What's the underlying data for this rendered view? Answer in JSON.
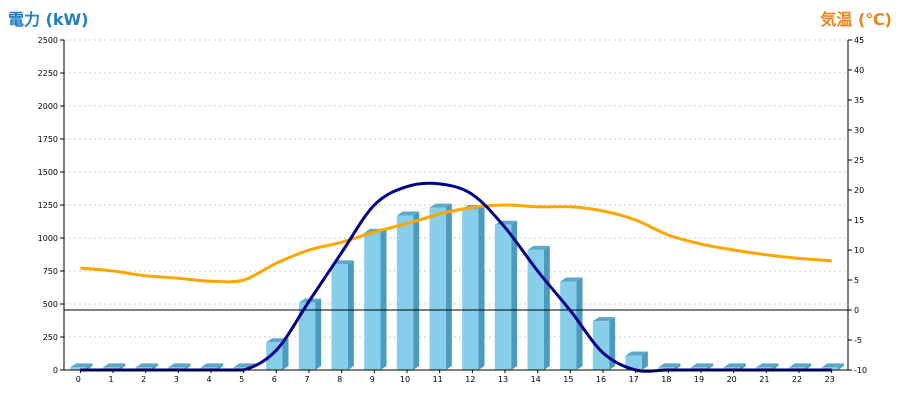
{
  "chart_data": {
    "type": "bar",
    "categories": [
      "0",
      "1",
      "2",
      "3",
      "4",
      "5",
      "6",
      "7",
      "8",
      "9",
      "10",
      "11",
      "12",
      "13",
      "14",
      "15",
      "16",
      "17",
      "18",
      "19",
      "20",
      "21",
      "22",
      "23"
    ],
    "left_axis": {
      "title": "電力 (kW)",
      "range": [
        0,
        2500
      ],
      "ticks": [
        "0",
        "250",
        "500",
        "750",
        "1000",
        "1250",
        "1500",
        "1750",
        "2000",
        "2250",
        "2500"
      ]
    },
    "right_axis": {
      "title": "気温 (℃)",
      "range": [
        -10,
        45
      ],
      "ticks": [
        "-10",
        "-5",
        "0",
        "5",
        "10",
        "15",
        "20",
        "25",
        "30",
        "35",
        "40",
        "45"
      ]
    },
    "series": [
      {
        "kind": "bar",
        "axis": "left",
        "values": [
          20,
          20,
          20,
          20,
          20,
          20,
          210,
          510,
          800,
          1040,
          1170,
          1230,
          1220,
          1100,
          910,
          670,
          370,
          110,
          20,
          20,
          20,
          20,
          20,
          20
        ]
      },
      {
        "kind": "line",
        "axis": "left",
        "values": [
          0,
          0,
          0,
          0,
          0,
          0,
          150,
          520,
          890,
          1250,
          1390,
          1410,
          1330,
          1080,
          750,
          450,
          130,
          0,
          0,
          0,
          0,
          0,
          0,
          0
        ]
      },
      {
        "kind": "line",
        "axis": "right",
        "values": [
          7,
          6.5,
          5.7,
          5.3,
          4.8,
          5,
          7.8,
          10,
          11.3,
          13,
          14.4,
          16,
          17.1,
          17.5,
          17.2,
          17.2,
          16.5,
          15,
          12.5,
          11,
          10,
          9.2,
          8.6,
          8.2
        ]
      }
    ],
    "colors": {
      "bar_face": "#87CEEB",
      "bar_side": "#4A9BBF",
      "bar_top": "#5BA8C8",
      "power_line": "#00008B",
      "temp_line": "#FFA500",
      "left_title": "#1E7FC2",
      "right_title": "#F0821E",
      "grid": "#c8c8c8"
    },
    "grid": true,
    "zero_line_right_axis": true
  }
}
